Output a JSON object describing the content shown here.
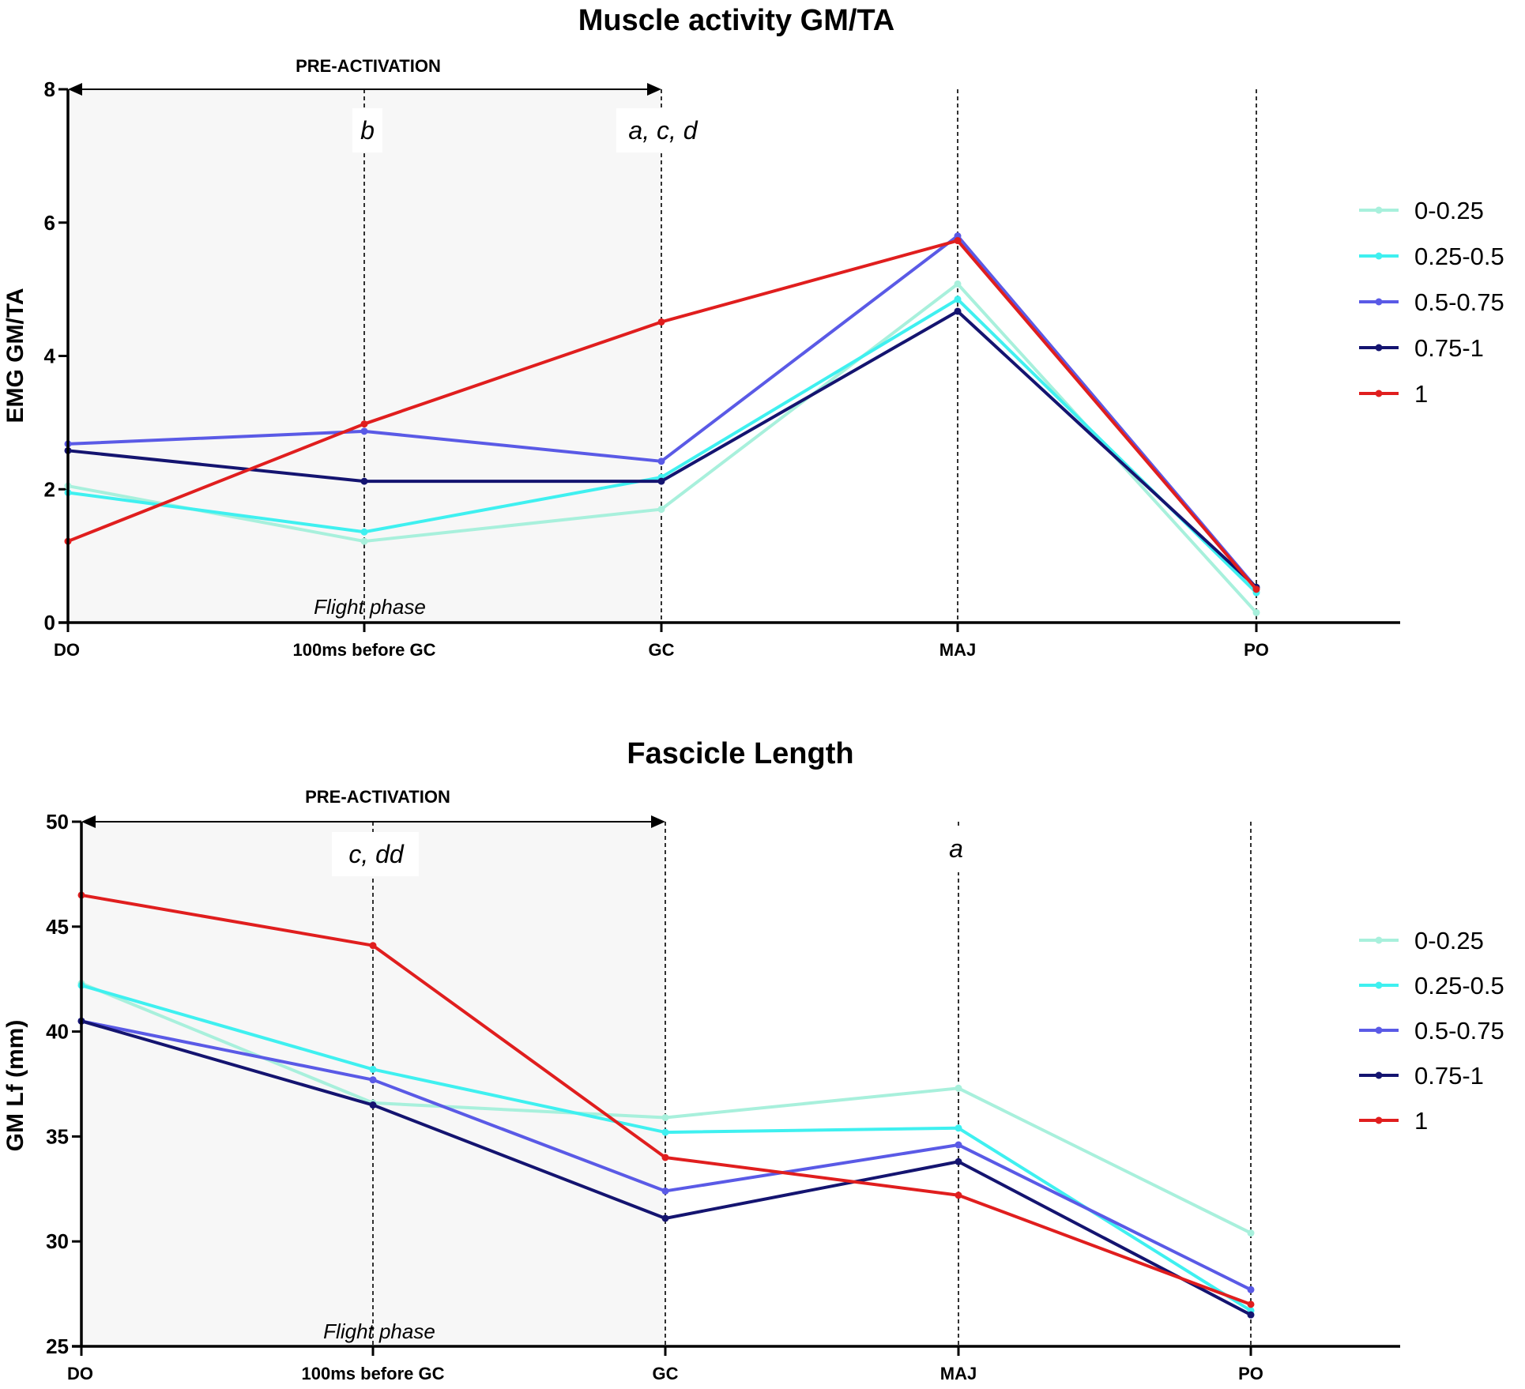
{
  "colors": {
    "0-0.25": "#a8f0dc",
    "0.25-0.5": "#3ff0f0",
    "0.5-0.75": "#5a5ae6",
    "0.75-1": "#141470",
    "1": "#e01e1e",
    "shade": "#f7f7f7"
  },
  "chart_data": [
    {
      "type": "line",
      "title": "Muscle activity GM/TA",
      "ylabel": "EMG GM/TA",
      "xlabel": "",
      "ylim": [
        0,
        8
      ],
      "yticks": [
        0,
        2,
        4,
        6,
        8
      ],
      "categories": [
        "DO",
        "100ms before GC",
        "GC",
        "MAJ",
        "PO"
      ],
      "phase_label": "PRE-ACTIVATION",
      "flight_label": "Flight phase",
      "annotations": {
        "b": "b",
        "acd": "a, c, d"
      },
      "legend": [
        "0-0.25",
        "0.25-0.5",
        "0.5-0.75",
        "0.75-1",
        "1"
      ],
      "series": [
        {
          "name": "0-0.25",
          "values": [
            2.05,
            1.22,
            1.7,
            5.08,
            0.15
          ]
        },
        {
          "name": "0.25-0.5",
          "values": [
            1.95,
            1.36,
            2.18,
            4.85,
            0.45
          ]
        },
        {
          "name": "0.5-0.75",
          "values": [
            2.68,
            2.87,
            2.42,
            5.8,
            0.52
          ]
        },
        {
          "name": "0.75-1",
          "values": [
            2.58,
            2.12,
            2.12,
            4.67,
            0.53
          ]
        },
        {
          "name": "1",
          "values": [
            1.22,
            2.98,
            4.51,
            5.73,
            0.5
          ]
        }
      ]
    },
    {
      "type": "line",
      "title": "Fascicle Length",
      "ylabel": "GM Lf (mm)",
      "xlabel": "",
      "ylim": [
        25,
        50
      ],
      "yticks": [
        25,
        30,
        35,
        40,
        45,
        50
      ],
      "categories": [
        "DO",
        "100ms before GC",
        "GC",
        "MAJ",
        "PO"
      ],
      "phase_label": "PRE-ACTIVATION",
      "flight_label": "Flight phase",
      "annotations": {
        "cdd": "c, dd",
        "a": "a"
      },
      "legend": [
        "0-0.25",
        "0.25-0.5",
        "0.5-0.75",
        "0.75-1",
        "1"
      ],
      "series": [
        {
          "name": "0-0.25",
          "values": [
            42.3,
            36.6,
            35.9,
            37.3,
            30.4
          ]
        },
        {
          "name": "0.25-0.5",
          "values": [
            42.2,
            38.2,
            35.2,
            35.4,
            26.7
          ]
        },
        {
          "name": "0.5-0.75",
          "values": [
            40.5,
            37.7,
            32.4,
            34.6,
            27.7
          ]
        },
        {
          "name": "0.75-1",
          "values": [
            40.5,
            36.5,
            31.1,
            33.8,
            26.5
          ]
        },
        {
          "name": "1",
          "values": [
            46.5,
            44.1,
            34.0,
            32.2,
            27.0
          ]
        }
      ]
    }
  ]
}
